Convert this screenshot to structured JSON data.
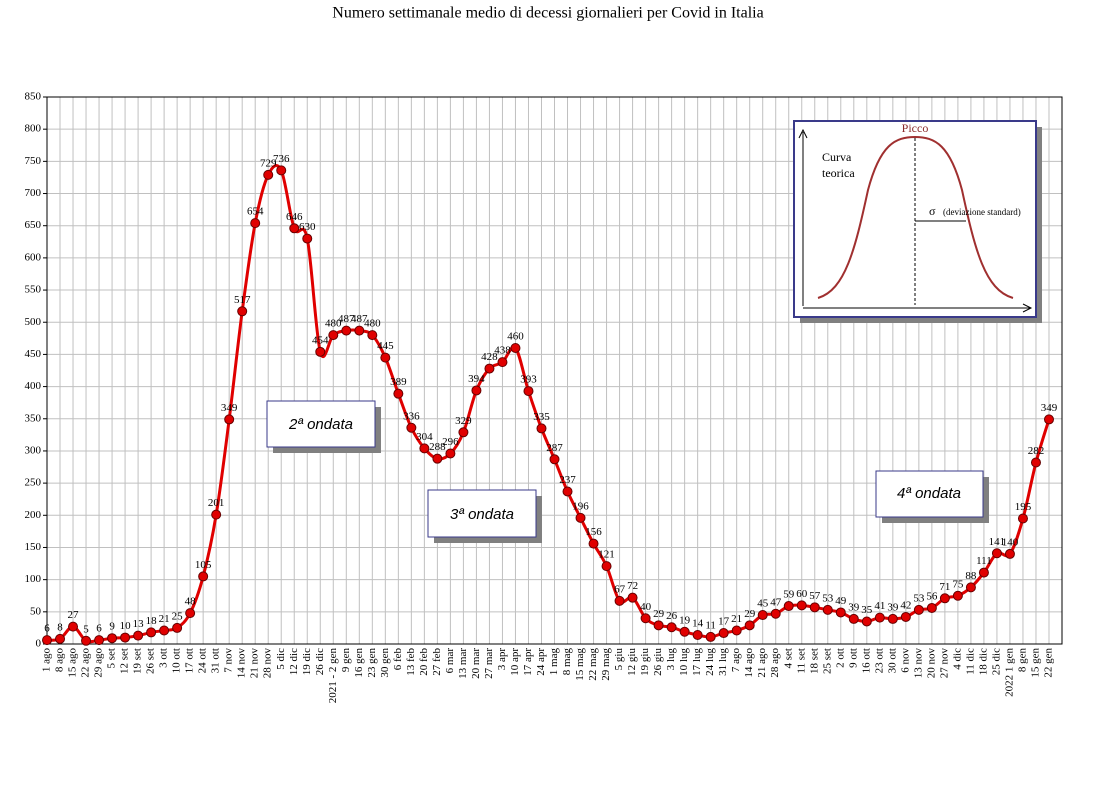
{
  "chart_data": {
    "type": "line",
    "title": "Numero settimanale medio di decessi giornalieri per Covid in Italia",
    "categories": [
      "1 ago",
      "8 ago",
      "15 ago",
      "22 ago",
      "29 ago",
      "5 set",
      "12 set",
      "19 set",
      "26 set",
      "3 ott",
      "10 ott",
      "17 ott",
      "24 ott",
      "31 ott",
      "7 nov",
      "14 nov",
      "21 nov",
      "28 nov",
      "5 dic",
      "12 dic",
      "19 dic",
      "26 dic",
      "2021 - 2 gen",
      "9 gen",
      "16 gen",
      "23 gen",
      "30 gen",
      "6 feb",
      "13 feb",
      "20 feb",
      "27 feb",
      "6 mar",
      "13 mar",
      "20 mar",
      "27 mar",
      "3 apr",
      "10 apr",
      "17 apr",
      "24 apr",
      "1 mag",
      "8 mag",
      "15 mag",
      "22 mag",
      "29 mag",
      "5 giu",
      "12 giu",
      "19 giu",
      "26 giu",
      "3 lug",
      "10 lug",
      "17 lug",
      "24 lug",
      "31 lug",
      "7 ago",
      "14 ago",
      "21 ago",
      "28 ago",
      "4 set",
      "11 set",
      "18 set",
      "25 set",
      "2 ott",
      "9 ott",
      "16 ott",
      "23 ott",
      "30 ott",
      "6 nov",
      "13 nov",
      "20 nov",
      "27 nov",
      "4 dic",
      "11 dic",
      "18 dic",
      "25 dic",
      "2022 1 gen",
      "8 gen",
      "15 gen",
      "22 gen"
    ],
    "values": [
      6,
      8,
      27,
      5,
      6,
      9,
      10,
      13,
      18,
      21,
      25,
      48,
      105,
      201,
      349,
      517,
      654,
      729,
      736,
      646,
      630,
      454,
      480,
      487,
      487,
      480,
      445,
      389,
      336,
      304,
      288,
      296,
      329,
      394,
      428,
      438,
      460,
      393,
      335,
      287,
      237,
      196,
      156,
      121,
      67,
      72,
      40,
      29,
      26,
      19,
      14,
      11,
      17,
      21,
      29,
      45,
      47,
      59,
      60,
      57,
      53,
      49,
      39,
      35,
      41,
      39,
      42,
      53,
      56,
      71,
      75,
      88,
      111,
      141,
      140,
      195,
      282,
      349
    ],
    "color": "#e00000",
    "ylim": [
      0,
      850
    ],
    "yticks": [
      0,
      50,
      100,
      150,
      200,
      250,
      300,
      350,
      400,
      450,
      500,
      550,
      600,
      650,
      700,
      750,
      800,
      850
    ],
    "grid": true,
    "annotations": [
      "2ª ondata",
      "3ª ondata",
      "4ª ondata"
    ],
    "inset": {
      "peak": "Picco",
      "y_label": [
        "Curva",
        "teorica"
      ],
      "sigma": "σ",
      "sigma_note": "(deviazione standard)"
    }
  }
}
